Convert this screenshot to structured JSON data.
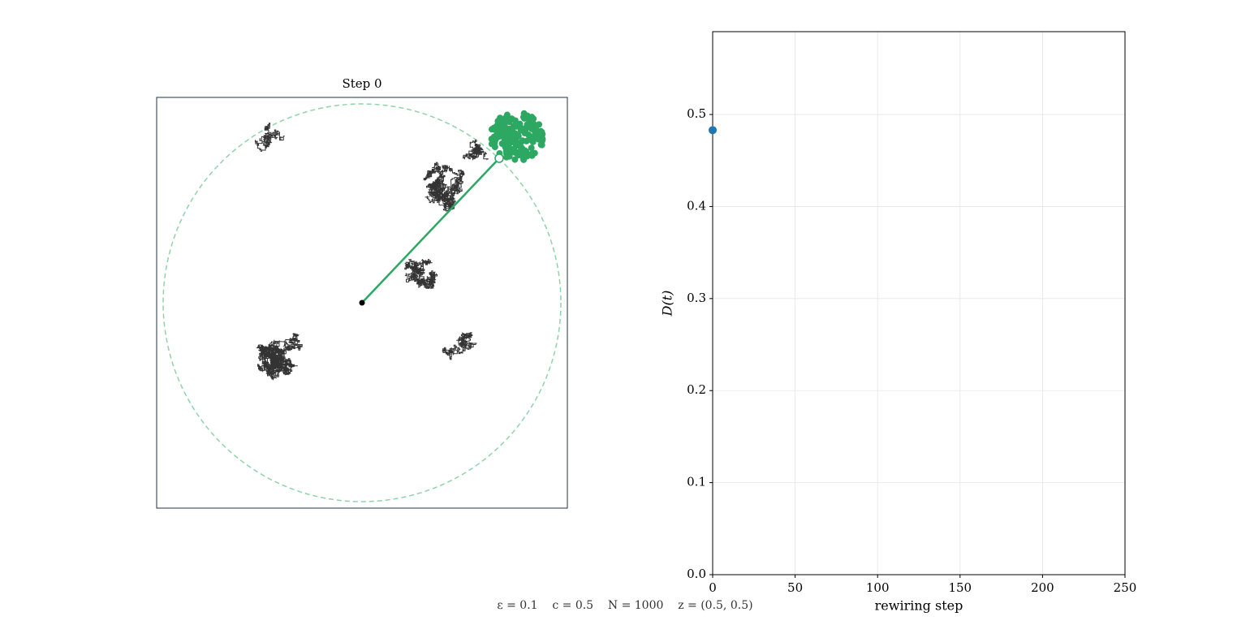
{
  "chart_data": [
    {
      "type": "simulation",
      "title": "Step 0"
    },
    {
      "type": "line",
      "xlabel": "rewiring step",
      "ylabel": "D(t)",
      "x": [
        0
      ],
      "series": [
        {
          "color": "#1f77b4",
          "values": [
            0.483
          ]
        }
      ],
      "xlim": [
        0,
        250
      ],
      "xticks": [
        0,
        50,
        100,
        150,
        200,
        250
      ],
      "ylim": [
        0,
        0.59
      ],
      "yticks": [
        {
          "value": 0,
          "label": "0.0"
        },
        0.1,
        0.2,
        0.3,
        0.4,
        0.5
      ],
      "grid": true
    }
  ],
  "caption": "ε = 0.1    c = 0.5    N = 1000    z = (0.5, 0.5)"
}
